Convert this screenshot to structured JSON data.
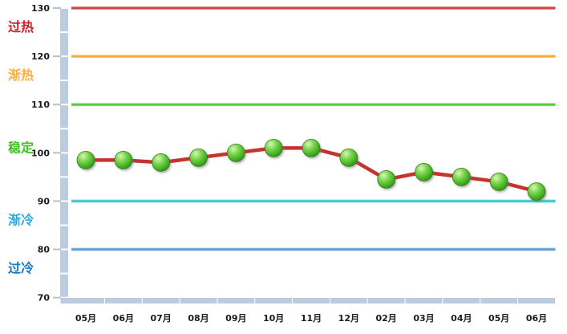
{
  "chart_data": {
    "type": "line",
    "categories": [
      "05月",
      "06月",
      "07月",
      "08月",
      "09月",
      "10月",
      "11月",
      "12月",
      "02月",
      "03月",
      "04月",
      "05月",
      "06月"
    ],
    "values": [
      98.5,
      98.5,
      98,
      99,
      100,
      101,
      101,
      99,
      94.5,
      96,
      95,
      94,
      92
    ],
    "title": "",
    "xlabel": "",
    "ylabel": "",
    "ylim": [
      70,
      130
    ],
    "y_ticks": [
      130,
      120,
      110,
      100,
      90,
      80,
      70
    ],
    "grid": "zone-lines-only",
    "legend": "none",
    "series_color": "#c5332d",
    "marker_fill": "#4fbe27",
    "marker_edge": "#256f0c",
    "axis_bar_color": "#bccbdd",
    "axis_tick_color": "#b3c3d6",
    "zone_lines": [
      {
        "value": 130,
        "color": "#d0453e"
      },
      {
        "value": 120,
        "color": "#fbaa33"
      },
      {
        "value": 110,
        "color": "#57c832"
      },
      {
        "value": 90,
        "color": "#2fc9ce"
      },
      {
        "value": 80,
        "color": "#5b9bd5"
      }
    ],
    "zone_labels": [
      {
        "label": "过热",
        "color": "#cc2028",
        "band": [
          120,
          130
        ],
        "key": "overheat"
      },
      {
        "label": "渐热",
        "color": "#fbaf3f",
        "band": [
          110,
          120
        ],
        "key": "getting-hot"
      },
      {
        "label": "稳定",
        "color": "#3fc324",
        "band": [
          90,
          110
        ],
        "key": "stable"
      },
      {
        "label": "渐冷",
        "color": "#29abe2",
        "band": [
          80,
          90
        ],
        "key": "getting-cold"
      },
      {
        "label": "过冷",
        "color": "#1779c4",
        "band": [
          70,
          80
        ],
        "key": "overcold"
      }
    ]
  }
}
